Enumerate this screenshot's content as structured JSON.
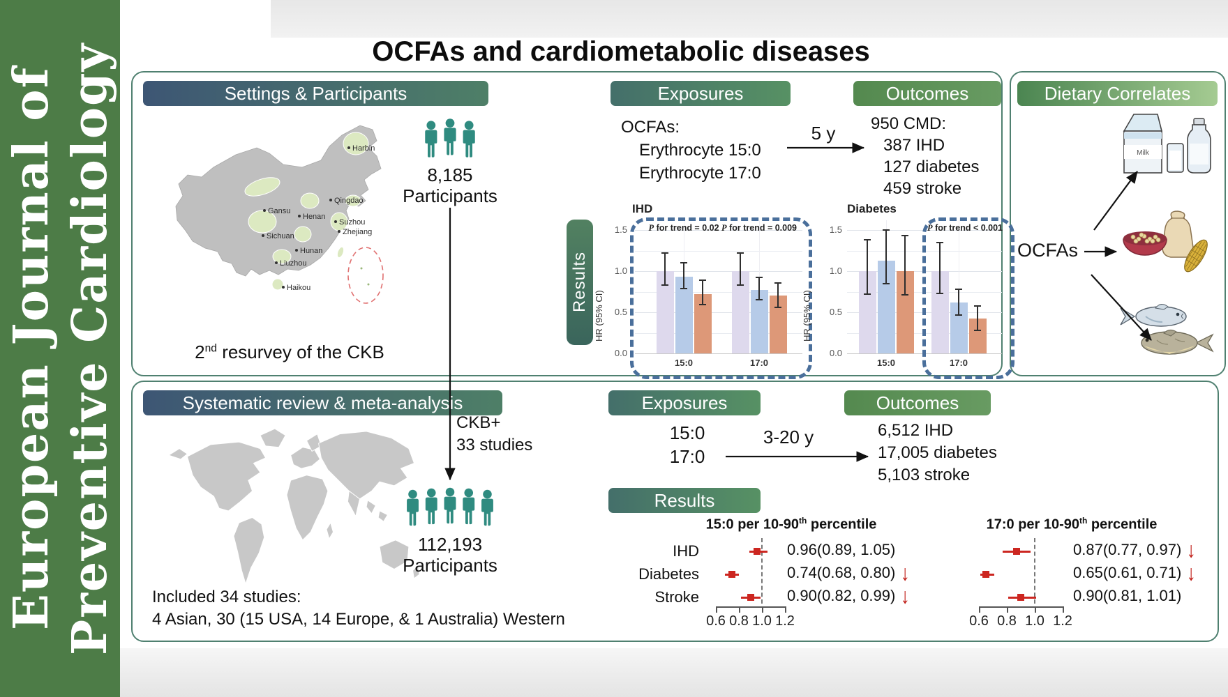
{
  "journal": {
    "line1": "European Journal of",
    "line2": "Preventive Cardiology"
  },
  "title": "OCFAs and cardiometabolic diseases",
  "colors": {
    "sidebar_green": "#4d7c47",
    "panel_border": "#4f8070",
    "header_bluegreen_left": "#3d5674",
    "header_bluegreen_right": "#4e7f67",
    "header_teal_left": "#446f6a",
    "header_teal_right": "#579164",
    "header_green_left": "#54894f",
    "header_green_right": "#689b62",
    "dietary_header_left": "#4b8551",
    "dietary_header_right": "#a5cb92",
    "bar_reference": "#ded9ed",
    "bar_middle": "#b6cbe8",
    "bar_top": "#dd9878",
    "dashed_highlight": "#4a6f9b",
    "forest_red": "#cc2620",
    "people_teal": "#2f8b80",
    "map_gray": "#bfbfbf",
    "province_green": "#dce9c1"
  },
  "ckb": {
    "settings_header": "Settings & Participants",
    "map_cities": [
      "Harbin",
      "Qingdao",
      "Gansu",
      "Henan",
      "Suzhou",
      "Zhejiang",
      "Sichuan",
      "Hunan",
      "Liuzhou",
      "Haikou"
    ],
    "resurvey": {
      "pre": "2",
      "sup": "nd",
      "post": " resurvey of the CKB"
    },
    "participants_count": "8,185",
    "participants_label": "Participants",
    "exposures_header": "Exposures",
    "exposures_title": "OCFAs:",
    "exposures_items": [
      "Erythrocyte 15:0",
      "Erythrocyte 17:0"
    ],
    "followup": "5 y",
    "outcomes_header": "Outcomes",
    "outcomes_title": "950 CMD:",
    "outcomes_items": [
      "387 IHD",
      "127 diabetes",
      "459 stroke"
    ],
    "results_label": "Results"
  },
  "dietary": {
    "header": "Dietary Correlates",
    "source_label": "OCFAs",
    "milk_label": "Milk",
    "items": [
      "milk-products",
      "grains-legumes",
      "fish"
    ]
  },
  "meta": {
    "header": "Systematic review & meta-analysis",
    "ckb_plus_line1": "CKB+",
    "ckb_plus_line2": "33 studies",
    "participants_count": "112,193",
    "participants_label": "Participants",
    "included_line1": "Included 34 studies:",
    "included_line2": "4 Asian, 30 (15 USA, 14 Europe, & 1 Australia) Western",
    "exposures_header": "Exposures",
    "exposures_items": [
      "15:0",
      "17:0"
    ],
    "followup": "3-20 y",
    "outcomes_header": "Outcomes",
    "outcomes_items": [
      "6,512 IHD",
      "17,005 diabetes",
      "5,103 stroke"
    ],
    "results_header": "Results"
  },
  "chart_data": [
    {
      "id": "ihd_bars",
      "type": "bar",
      "title": "IHD",
      "ylabel": "HR (95% CI)",
      "ylim": [
        0,
        1.5
      ],
      "yticks": [
        1.5,
        1.0,
        0.5,
        0.0
      ],
      "categories": [
        "15:0",
        "17:0"
      ],
      "series": [
        {
          "name": "reference",
          "color": "#ded9ed",
          "values": [
            1.0,
            1.0
          ],
          "ci_low": [
            0.83,
            0.83
          ],
          "ci_high": [
            1.22,
            1.22
          ]
        },
        {
          "name": "middle tertile",
          "color": "#b6cbe8",
          "values": [
            0.93,
            0.77
          ],
          "ci_low": [
            0.79,
            0.65
          ],
          "ci_high": [
            1.1,
            0.92
          ]
        },
        {
          "name": "top tertile",
          "color": "#dd9878",
          "values": [
            0.72,
            0.7
          ],
          "ci_low": [
            0.59,
            0.56
          ],
          "ci_high": [
            0.89,
            0.86
          ]
        }
      ],
      "annotations": [
        {
          "italic": "P",
          "rest": " for trend = 0.02",
          "group": 0
        },
        {
          "italic": "P",
          "rest": " for trend = 0.009",
          "group": 1
        }
      ],
      "highlight": "both-groups",
      "grid": true,
      "legend": "none"
    },
    {
      "id": "diabetes_bars",
      "type": "bar",
      "title": "Diabetes",
      "ylabel": "HR (95% CI)",
      "ylim": [
        0,
        1.5
      ],
      "yticks": [
        1.5,
        1.0,
        0.5,
        0.0
      ],
      "categories": [
        "15:0",
        "17:0"
      ],
      "series": [
        {
          "name": "reference",
          "color": "#ded9ed",
          "values": [
            1.0,
            1.0
          ],
          "ci_low": [
            0.72,
            0.73
          ],
          "ci_high": [
            1.38,
            1.35
          ]
        },
        {
          "name": "middle tertile",
          "color": "#b6cbe8",
          "values": [
            1.13,
            0.62
          ],
          "ci_low": [
            0.85,
            0.47
          ],
          "ci_high": [
            1.5,
            0.78
          ]
        },
        {
          "name": "top tertile",
          "color": "#dd9878",
          "values": [
            1.0,
            0.42
          ],
          "ci_low": [
            0.71,
            0.28
          ],
          "ci_high": [
            1.43,
            0.58
          ]
        }
      ],
      "annotations": [
        {
          "italic": "P",
          "rest": " for trend < 0.001",
          "group": 1
        }
      ],
      "highlight": "17:0-group",
      "grid": true,
      "legend": "none"
    },
    {
      "id": "forest_150",
      "type": "scatter",
      "title": {
        "pre": "15:0 per 10-90",
        "sup": "th",
        "post": " percentile"
      },
      "xticks": [
        "0.6",
        "0.8",
        "1.0",
        "1.2"
      ],
      "xlim": [
        0.6,
        1.2
      ],
      "refline": 1.0,
      "rows": [
        {
          "label": "IHD",
          "hr": 0.96,
          "lo": 0.89,
          "hi": 1.05,
          "text": "0.96(0.89, 1.05)",
          "down_arrow": false
        },
        {
          "label": "Diabetes",
          "hr": 0.74,
          "lo": 0.68,
          "hi": 0.8,
          "text": "0.74(0.68, 0.80)",
          "down_arrow": true
        },
        {
          "label": "Stroke",
          "hr": 0.9,
          "lo": 0.82,
          "hi": 0.99,
          "text": "0.90(0.82, 0.99)",
          "down_arrow": true
        }
      ]
    },
    {
      "id": "forest_170",
      "type": "scatter",
      "title": {
        "pre": "17:0 per 10-90",
        "sup": "th",
        "post": " percentile"
      },
      "xticks": [
        "0.6",
        "0.8",
        "1.0",
        "1.2"
      ],
      "xlim": [
        0.6,
        1.2
      ],
      "refline": 1.0,
      "rows": [
        {
          "label": "IHD",
          "hr": 0.87,
          "lo": 0.77,
          "hi": 0.97,
          "text": "0.87(0.77, 0.97)",
          "down_arrow": true
        },
        {
          "label": "Diabetes",
          "hr": 0.65,
          "lo": 0.61,
          "hi": 0.71,
          "text": "0.65(0.61, 0.71)",
          "down_arrow": true
        },
        {
          "label": "Stroke",
          "hr": 0.9,
          "lo": 0.81,
          "hi": 1.01,
          "text": "0.90(0.81, 1.01)",
          "down_arrow": false
        }
      ]
    }
  ]
}
